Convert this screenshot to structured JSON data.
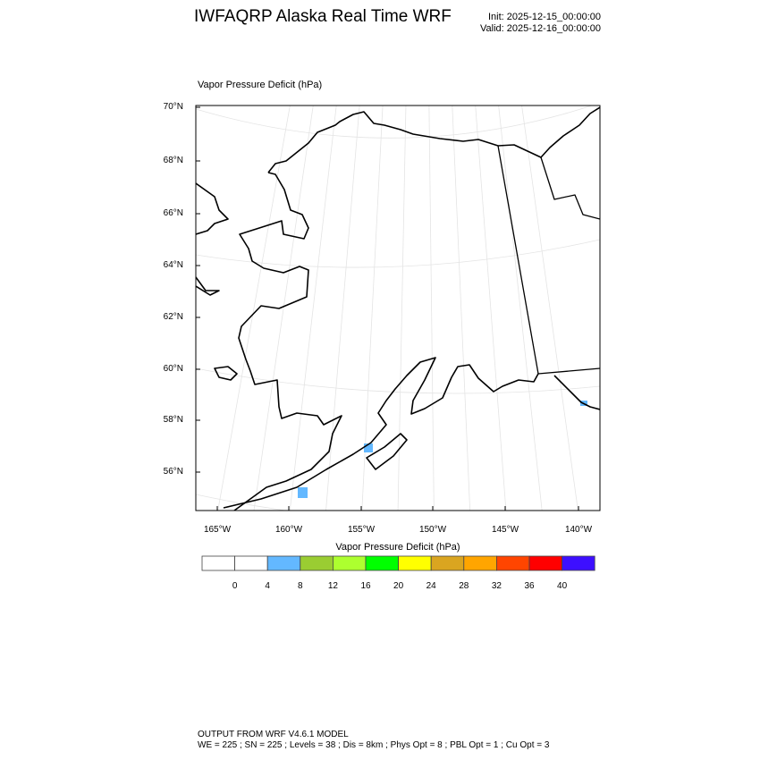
{
  "header": {
    "title": "IWFAQRP Alaska Real Time WRF",
    "init": "Init: 2025-12-15_00:00:00",
    "valid": "Valid: 2025-12-16_00:00:00"
  },
  "map": {
    "field_label": "Vapor Pressure Deficit   (hPa)",
    "lat_labels": [
      "70°N",
      "68°N",
      "66°N",
      "64°N",
      "62°N",
      "60°N",
      "58°N",
      "56°N"
    ],
    "lon_labels": [
      "165°W",
      "160°W",
      "155°W",
      "150°W",
      "145°W",
      "140°W"
    ],
    "region": "Alaska",
    "shaded_category": "4-8"
  },
  "colorbar": {
    "title": "Vapor Pressure Deficit  (hPa)",
    "labels": [
      "0",
      "4",
      "8",
      "12",
      "16",
      "20",
      "24",
      "28",
      "32",
      "36",
      "40"
    ],
    "colors": [
      "#ffffff",
      "#ffffff",
      "#63b8ff",
      "#9acd32",
      "#adff2f",
      "#00ff00",
      "#ffff00",
      "#daa520",
      "#ffa500",
      "#ff4500",
      "#ff0000",
      "#3d0fff"
    ]
  },
  "footer": {
    "line1": "OUTPUT FROM WRF V4.6.1 MODEL",
    "line2": "WE = 225 ; SN = 225 ; Levels = 38 ; Dis = 8km ; Phys Opt = 8 ; PBL Opt = 1 ; Cu Opt = 3"
  }
}
